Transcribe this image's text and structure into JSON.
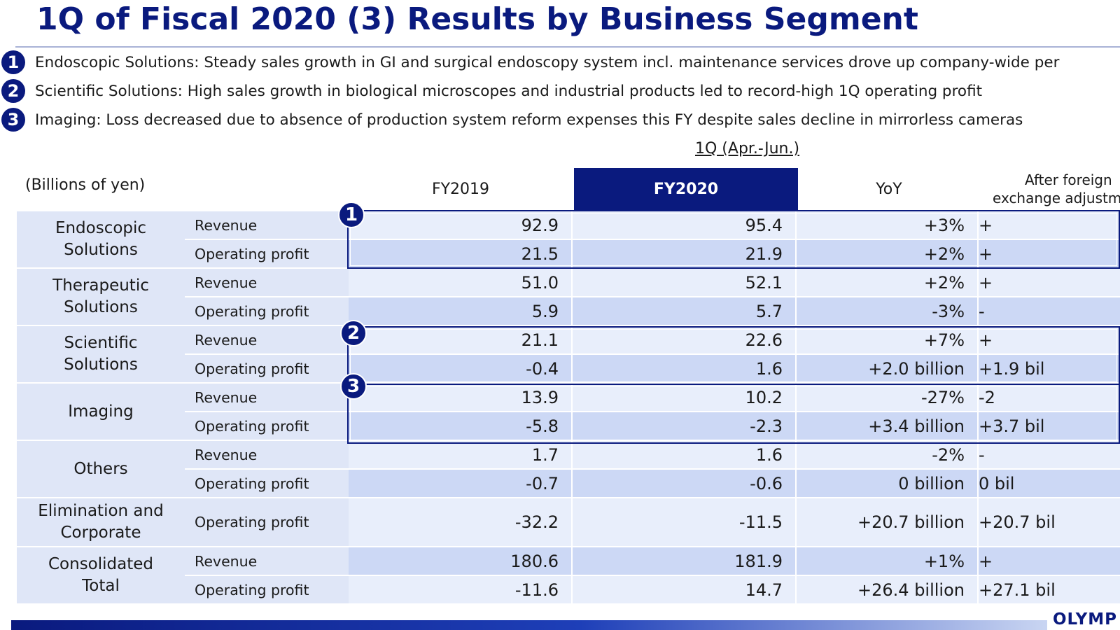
{
  "title": "1Q of Fiscal 2020 (3) Results by Business Segment",
  "bullets": [
    {
      "num": "1",
      "text": "Endoscopic Solutions: Steady sales growth in GI and surgical endoscopy system incl. maintenance services drove up company-wide per"
    },
    {
      "num": "2",
      "text": "Scientific Solutions: High sales growth in biological microscopes and industrial products led to record-high 1Q operating profit"
    },
    {
      "num": "3",
      "text": "Imaging: Loss decreased due to absence of production system reform expenses this FY despite sales decline in mirrorless cameras"
    }
  ],
  "table": {
    "period": "1Q (Apr.-Jun.)",
    "units": "(Billions of yen)",
    "columns": [
      "FY2019",
      "FY2020",
      "YoY",
      "After foreign",
      "exchange adjustm"
    ],
    "segments": [
      {
        "name_lines": [
          "Endoscopic",
          "Solutions"
        ],
        "rows": [
          {
            "metric": "Revenue",
            "fy2019": "92.9",
            "fy2020": "95.4",
            "yoy": "+3%",
            "fx": "+"
          },
          {
            "metric": "Operating profit",
            "fy2019": "21.5",
            "fy2020": "21.9",
            "yoy": "+2%",
            "fx": "+"
          }
        ]
      },
      {
        "name_lines": [
          "Therapeutic",
          "Solutions"
        ],
        "rows": [
          {
            "metric": "Revenue",
            "fy2019": "51.0",
            "fy2020": "52.1",
            "yoy": "+2%",
            "fx": "+"
          },
          {
            "metric": "Operating profit",
            "fy2019": "5.9",
            "fy2020": "5.7",
            "yoy": "-3%",
            "fx": "-"
          }
        ]
      },
      {
        "name_lines": [
          "Scientific",
          "Solutions"
        ],
        "rows": [
          {
            "metric": "Revenue",
            "fy2019": "21.1",
            "fy2020": "22.6",
            "yoy": "+7%",
            "fx": "+"
          },
          {
            "metric": "Operating profit",
            "fy2019": "-0.4",
            "fy2020": "1.6",
            "yoy": "+2.0 billion",
            "fx": "+1.9 bil"
          }
        ]
      },
      {
        "name_lines": [
          "Imaging"
        ],
        "rows": [
          {
            "metric": "Revenue",
            "fy2019": "13.9",
            "fy2020": "10.2",
            "yoy": "-27%",
            "fx": "-2"
          },
          {
            "metric": "Operating profit",
            "fy2019": "-5.8",
            "fy2020": "-2.3",
            "yoy": "+3.4 billion",
            "fx": "+3.7 bil"
          }
        ]
      },
      {
        "name_lines": [
          "Others"
        ],
        "rows": [
          {
            "metric": "Revenue",
            "fy2019": "1.7",
            "fy2020": "1.6",
            "yoy": "-2%",
            "fx": "-"
          },
          {
            "metric": "Operating profit",
            "fy2019": "-0.7",
            "fy2020": "-0.6",
            "yoy": "0 billion",
            "fx": "0 bil"
          }
        ]
      },
      {
        "name_lines": [
          "Elimination and",
          "Corporate"
        ],
        "rows": [
          {
            "metric": "Operating profit",
            "fy2019": "-32.2",
            "fy2020": "-11.5",
            "yoy": "+20.7 billion",
            "fx": "+20.7 bil"
          }
        ]
      },
      {
        "name_lines": [
          "Consolidated",
          "Total"
        ],
        "rows": [
          {
            "metric": "Revenue",
            "fy2019": "180.6",
            "fy2020": "181.9",
            "yoy": "+1%",
            "fx": "+"
          },
          {
            "metric": "Operating profit",
            "fy2019": "-11.6",
            "fy2020": "14.7",
            "yoy": "+26.4 billion",
            "fx": "+27.1 bil"
          }
        ]
      }
    ],
    "highlight_badges": [
      "1",
      "2",
      "3"
    ]
  },
  "footer": {
    "logo": "OLYMP"
  },
  "colors": {
    "accent": "#0a1a7e",
    "row_light": "#e8eefb",
    "row_dark": "#ccd8f5",
    "segment_bg": "#dfe6f7"
  }
}
